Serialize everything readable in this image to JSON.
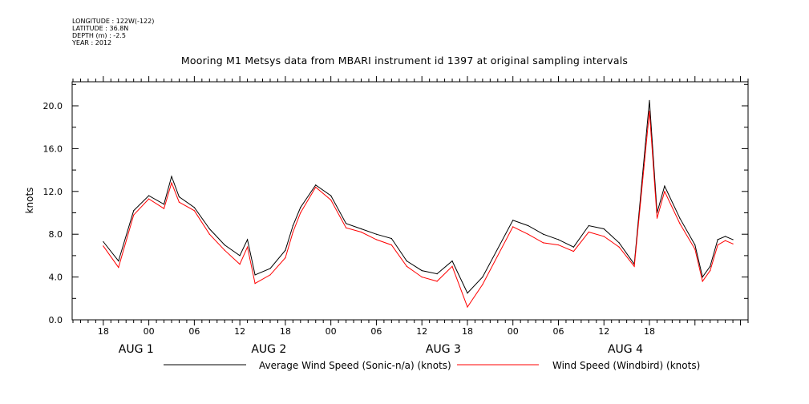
{
  "header": {
    "longitude": "LONGITUDE : 122W(-122)",
    "latitude": "LATITUDE : 36.8N",
    "depth": "DEPTH (m) : -2.5",
    "year": "YEAR : 2012",
    "title": "Mooring M1 Metsys data from MBARI instrument id 1397 at original sampling intervals"
  },
  "chart_data": {
    "type": "line",
    "ylabel": "knots",
    "ylim": [
      0,
      22
    ],
    "yticks": [
      "0.0",
      "4.0",
      "8.0",
      "12.0",
      "16.0",
      "20.0"
    ],
    "xlim": [
      -10,
      79
    ],
    "hour_tick_labels": [
      "18",
      "00",
      "06",
      "12",
      "18",
      "00",
      "06",
      "12",
      "18",
      "00",
      "06",
      "12",
      "18"
    ],
    "date_labels": [
      "AUG 1",
      "AUG 2",
      "AUG 3",
      "AUG 4"
    ],
    "colors": {
      "sonic": "#000000",
      "windbird": "#ff0000"
    },
    "series": [
      {
        "name": "Average Wind Speed (Sonic-n/a) (knots)",
        "color": "#000000",
        "x_unit": "hours after 2012-08-01 00:00",
        "x": [
          -6,
          -4,
          -2,
          0,
          2,
          3,
          4,
          6,
          8,
          10,
          12,
          13,
          14,
          16,
          18,
          19,
          20,
          22,
          24,
          26,
          28,
          30,
          32,
          34,
          36,
          38,
          40,
          42,
          44,
          48,
          50,
          52,
          54,
          56,
          58,
          60,
          62,
          64,
          66,
          67,
          68,
          70,
          72,
          73,
          74,
          75,
          76,
          77
        ],
        "values": [
          7.3,
          5.5,
          10.2,
          11.6,
          10.8,
          13.4,
          11.5,
          10.5,
          8.5,
          7.0,
          6.0,
          7.5,
          4.2,
          4.8,
          6.5,
          8.8,
          10.5,
          12.6,
          11.6,
          9.0,
          8.5,
          8.0,
          7.6,
          5.5,
          4.6,
          4.3,
          5.5,
          2.5,
          4.0,
          9.3,
          8.8,
          8.0,
          7.5,
          6.8,
          8.8,
          8.5,
          7.2,
          5.2,
          20.5,
          10.0,
          12.5,
          9.5,
          7.0,
          4.0,
          5.0,
          7.5,
          7.8,
          7.5
        ]
      },
      {
        "name": "Wind Speed (Windbird) (knots)",
        "color": "#ff0000",
        "x_unit": "hours after 2012-08-01 00:00",
        "x": [
          -6,
          -4,
          -2,
          0,
          2,
          3,
          4,
          6,
          8,
          10,
          12,
          13,
          14,
          16,
          18,
          19,
          20,
          22,
          24,
          26,
          28,
          30,
          32,
          34,
          36,
          38,
          40,
          42,
          44,
          48,
          50,
          52,
          54,
          56,
          58,
          60,
          62,
          64,
          66,
          67,
          68,
          70,
          72,
          73,
          74,
          75,
          76,
          77
        ],
        "values": [
          6.9,
          4.9,
          9.8,
          11.3,
          10.4,
          12.8,
          11.0,
          10.2,
          8.0,
          6.5,
          5.2,
          6.8,
          3.4,
          4.2,
          5.8,
          8.2,
          10.0,
          12.4,
          11.2,
          8.6,
          8.2,
          7.5,
          7.0,
          5.0,
          4.0,
          3.6,
          5.0,
          1.2,
          3.3,
          8.7,
          8.0,
          7.2,
          7.0,
          6.4,
          8.2,
          7.8,
          6.8,
          5.0,
          19.5,
          9.5,
          12.0,
          9.0,
          6.6,
          3.6,
          4.6,
          7.0,
          7.4,
          7.1
        ]
      }
    ]
  }
}
